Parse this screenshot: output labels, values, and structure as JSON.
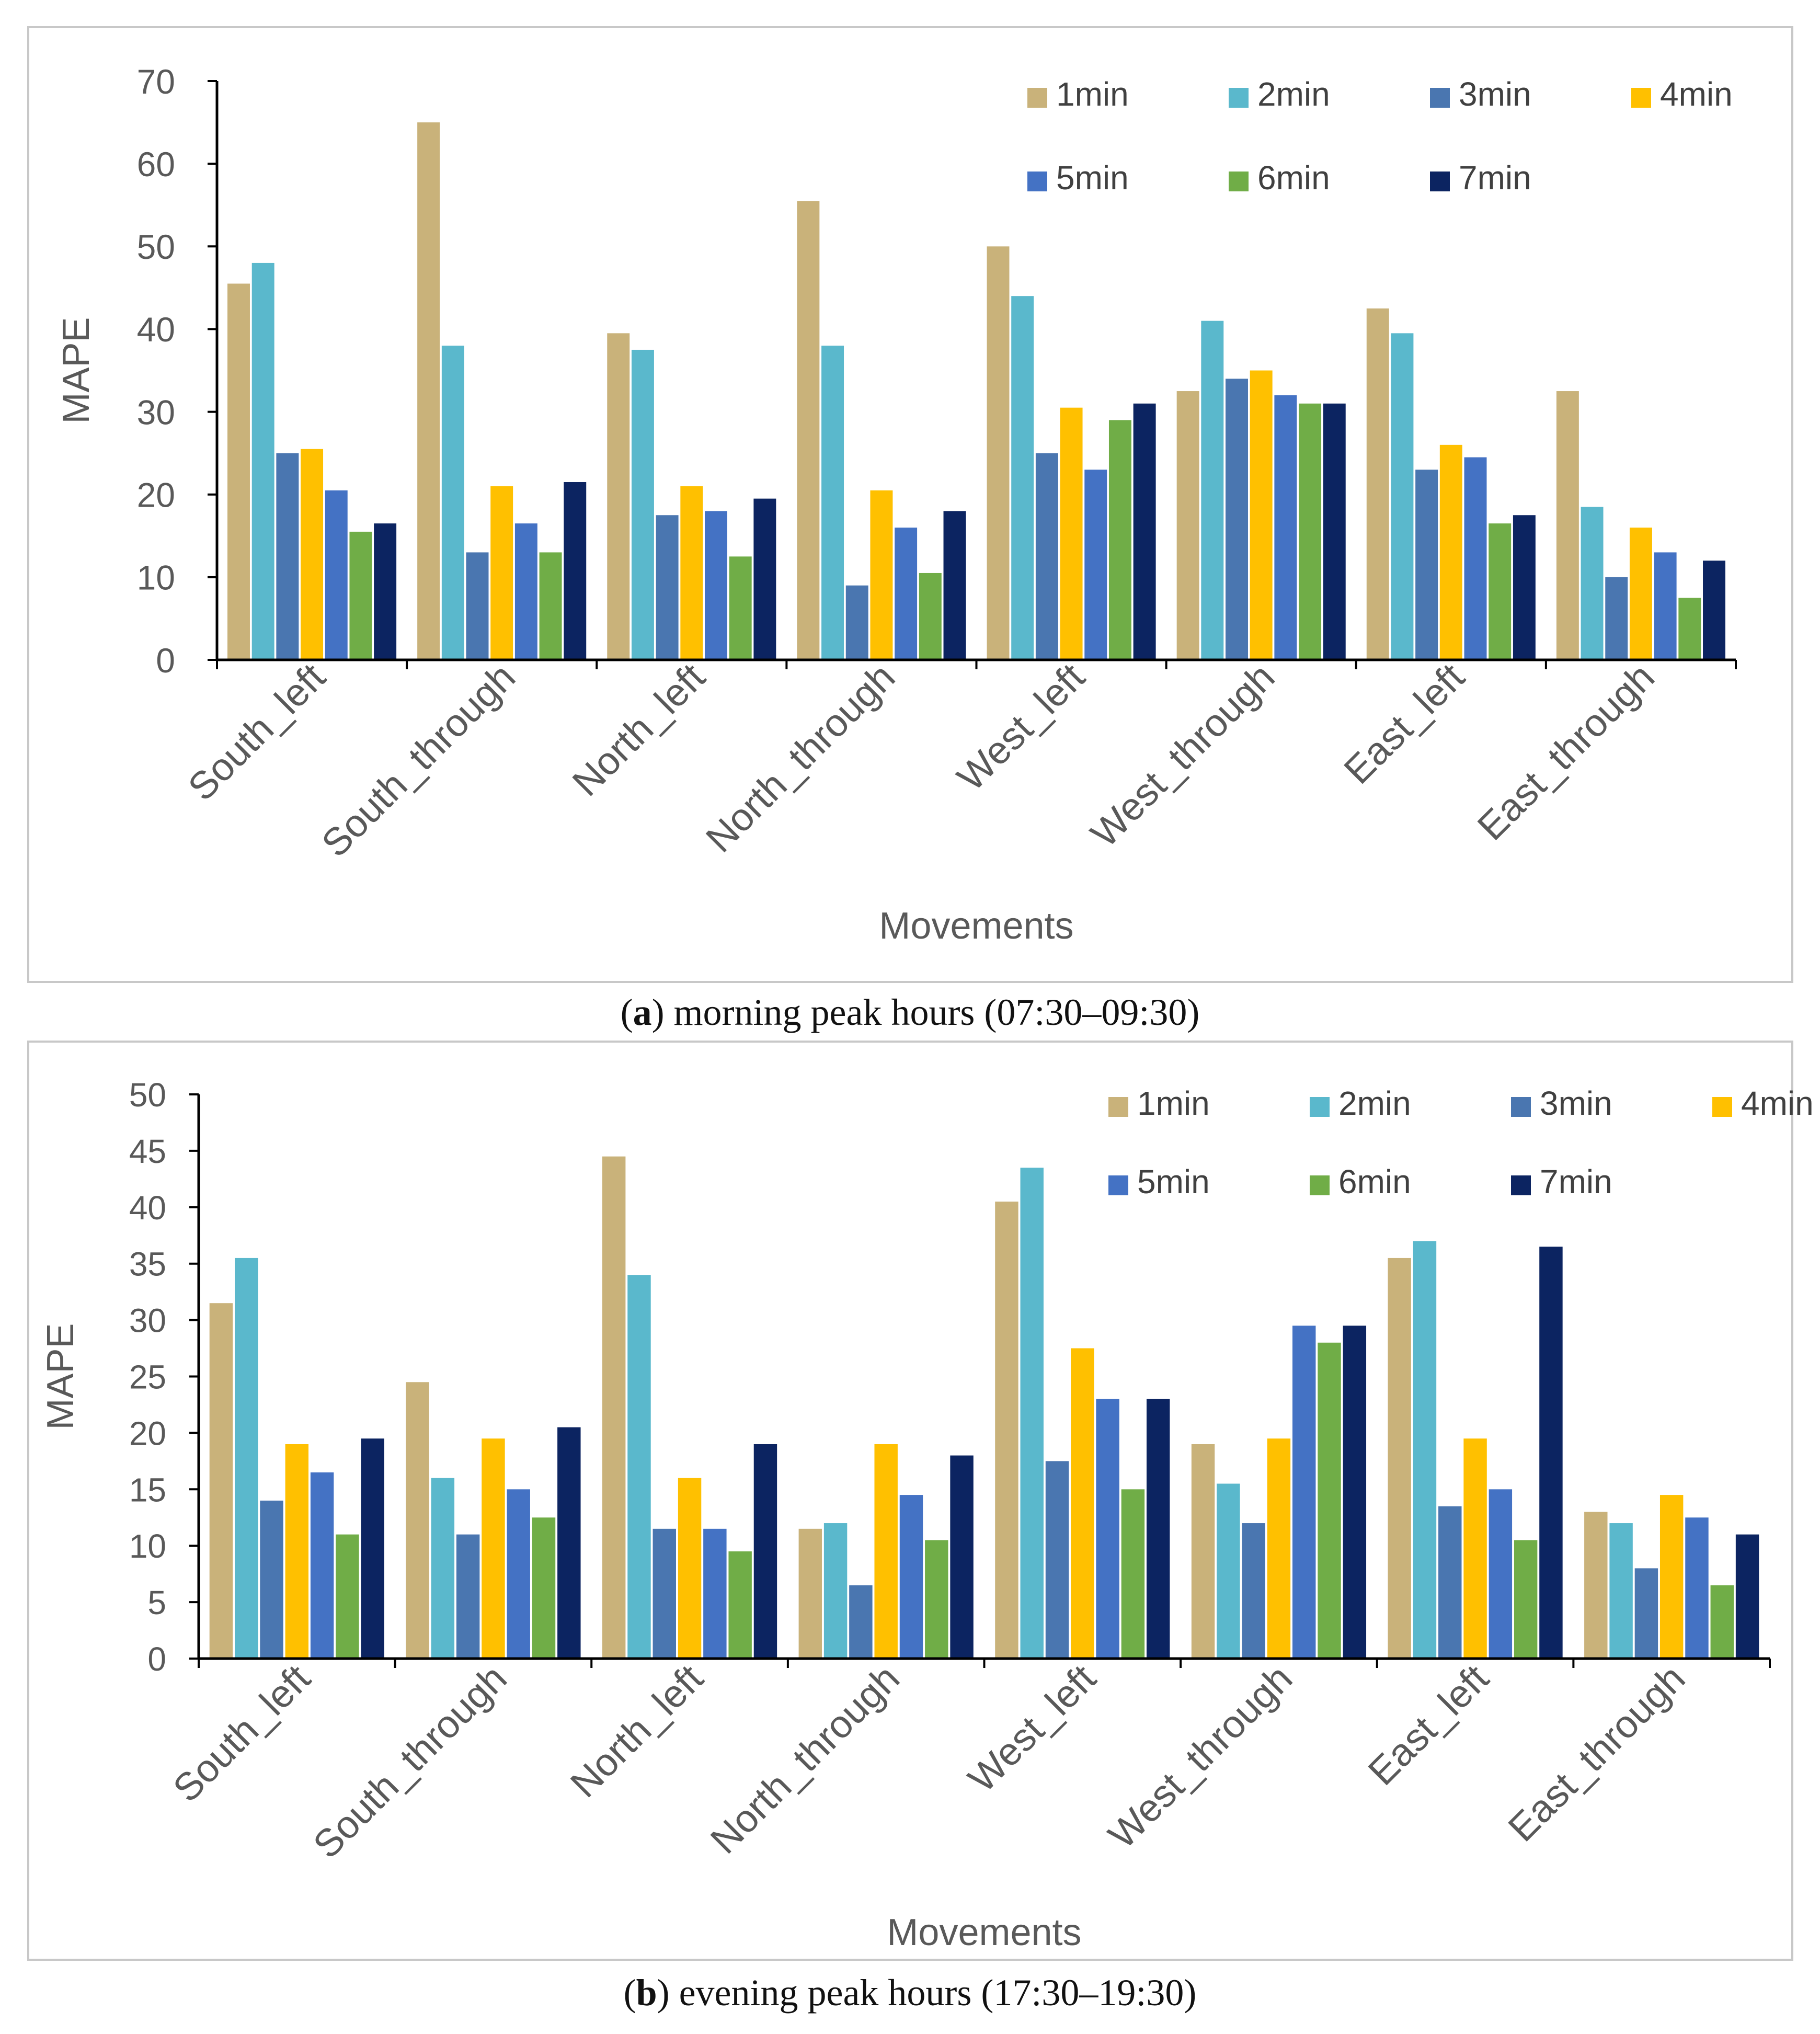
{
  "chart_data": [
    {
      "type": "bar",
      "title": "",
      "xlabel": "Movements",
      "ylabel": "MAPE",
      "ylim": [
        0,
        70
      ],
      "yticks": [
        0,
        10,
        20,
        30,
        40,
        50,
        60,
        70
      ],
      "grid": false,
      "legend_position": "top-right",
      "categories": [
        "South_left",
        "South_through",
        "North_left",
        "North_through",
        "West_left",
        "West_through",
        "East_left",
        "East_through"
      ],
      "series": [
        {
          "name": "1min",
          "color": "#c9b27a",
          "values": [
            45.5,
            65,
            39.5,
            55.5,
            50,
            32.5,
            42.5,
            32.5
          ]
        },
        {
          "name": "2min",
          "color": "#5ab8cc",
          "values": [
            48,
            38,
            37.5,
            38,
            44,
            41,
            39.5,
            18.5
          ]
        },
        {
          "name": "3min",
          "color": "#4a76b0",
          "values": [
            25,
            13,
            17.5,
            9,
            25,
            34,
            23,
            10
          ]
        },
        {
          "name": "4min",
          "color": "#ffc000",
          "values": [
            25.5,
            21,
            21,
            20.5,
            30.5,
            35,
            26,
            16
          ]
        },
        {
          "name": "5min",
          "color": "#4472c4",
          "values": [
            20.5,
            16.5,
            18,
            16,
            23,
            32,
            24.5,
            13
          ]
        },
        {
          "name": "6min",
          "color": "#70ad47",
          "values": [
            15.5,
            13,
            12.5,
            10.5,
            29,
            31,
            16.5,
            7.5
          ]
        },
        {
          "name": "7min",
          "color": "#0c2461",
          "values": [
            16.5,
            21.5,
            19.5,
            18,
            31,
            31,
            17.5,
            12
          ]
        }
      ],
      "caption": {
        "label": "a",
        "text": ") morning peak hours (07:30–09:30)"
      }
    },
    {
      "type": "bar",
      "title": "",
      "xlabel": "Movements",
      "ylabel": "MAPE",
      "ylim": [
        0,
        50
      ],
      "yticks": [
        0,
        5,
        10,
        15,
        20,
        25,
        30,
        35,
        40,
        45,
        50
      ],
      "grid": false,
      "legend_position": "top-right",
      "categories": [
        "South_left",
        "South_through",
        "North_left",
        "North_through",
        "West_left",
        "West_through",
        "East_left",
        "East_through"
      ],
      "series": [
        {
          "name": "1min",
          "color": "#c9b27a",
          "values": [
            31.5,
            24.5,
            44.5,
            11.5,
            40.5,
            19,
            35.5,
            13
          ]
        },
        {
          "name": "2min",
          "color": "#5ab8cc",
          "values": [
            35.5,
            16,
            34,
            12,
            43.5,
            15.5,
            37,
            12
          ]
        },
        {
          "name": "3min",
          "color": "#4a76b0",
          "values": [
            14,
            11,
            11.5,
            6.5,
            17.5,
            12,
            13.5,
            8
          ]
        },
        {
          "name": "4min",
          "color": "#ffc000",
          "values": [
            19,
            19.5,
            16,
            19,
            27.5,
            19.5,
            19.5,
            14.5
          ]
        },
        {
          "name": "5min",
          "color": "#4472c4",
          "values": [
            16.5,
            15,
            11.5,
            14.5,
            23,
            29.5,
            15,
            12.5
          ]
        },
        {
          "name": "6min",
          "color": "#70ad47",
          "values": [
            11,
            12.5,
            9.5,
            10.5,
            15,
            28,
            10.5,
            6.5
          ]
        },
        {
          "name": "7min",
          "color": "#0c2461",
          "values": [
            19.5,
            20.5,
            19,
            18,
            23,
            29.5,
            36.5,
            11
          ]
        }
      ],
      "caption": {
        "label": "b",
        "text": ") evening peak hours (17:30–19:30)"
      }
    }
  ]
}
